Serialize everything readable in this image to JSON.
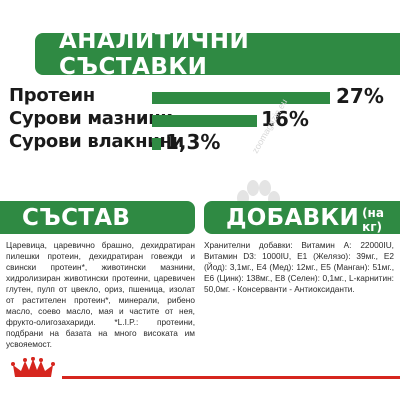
{
  "analytics": {
    "title": "АНАЛИТИЧНИ СЪСТАВКИ",
    "rows": [
      {
        "label": "Протеин",
        "value_label": "27%",
        "percent": 27
      },
      {
        "label": "Сурови мазнини",
        "value_label": "16%",
        "percent": 16
      },
      {
        "label": "Сурови влакнини",
        "value_label": "1,3%",
        "percent": 1.3
      }
    ]
  },
  "composition": {
    "title": "СЪСТАВ",
    "text": "Царевица, царевично брашно, дехидратиран пилешки протеин, дехидратиран говежди и свински протеин*, животински мазнини, хидролизиран животински протеини, царевичен глутен, пулп от цвекло, ориз, пшеница, изолат от растителен протеин*, минерали, рибено масло, соево масло, мая и частите от нея, фрукто-олигозахариди. *L.I.P.: протеини, подбрани на базата на много високата им усвояемост."
  },
  "additives": {
    "title": "ДОБАВКИ",
    "suffix": "(на кг)",
    "text": "Хранителни добавки: Витамин А: 22000IU, Витамин D3: 1000IU, Е1 (Желязо): 39мг., Е2 (Йод): 3,1мг., Е4 (Мед): 12мг., Е5 (Манган): 51мг., Е6 (Цинк): 138мг., Е8 (Селен): 0,1мг., L-карнитин: 50,0мг. - Консерванти - Антиоксиданти."
  },
  "watermark": "zoomagazin.eu",
  "colors": {
    "accent": "#2f8a43",
    "footer": "#d6261e"
  }
}
